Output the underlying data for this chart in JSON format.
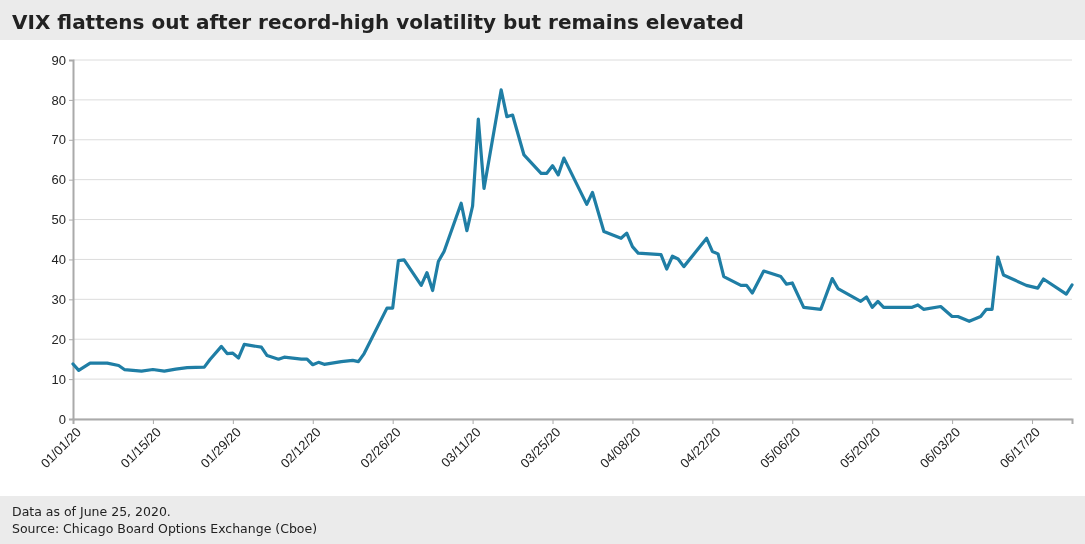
{
  "chart_data": {
    "type": "line",
    "title": "VIX flattens out after record-high volatility but remains elevated",
    "annotations": [
      "Data as of June 25, 2020.",
      "Source: Chicago Board Options Exchange (Cboe)"
    ],
    "series": [
      {
        "color": "#1f7ea5",
        "x": [
          "2020-01-01",
          "2020-01-02",
          "2020-01-04",
          "2020-01-07",
          "2020-01-09",
          "2020-01-10",
          "2020-01-13",
          "2020-01-15",
          "2020-01-17",
          "2020-01-19",
          "2020-01-21",
          "2020-01-24",
          "2020-01-25",
          "2020-01-27",
          "2020-01-28",
          "2020-01-29",
          "2020-01-30",
          "2020-01-31",
          "2020-02-03",
          "2020-02-04",
          "2020-02-06",
          "2020-02-07",
          "2020-02-10",
          "2020-02-11",
          "2020-02-12",
          "2020-02-13",
          "2020-02-14",
          "2020-02-17",
          "2020-02-19",
          "2020-02-20",
          "2020-02-21",
          "2020-02-25",
          "2020-02-26",
          "2020-02-27",
          "2020-02-28",
          "2020-03-02",
          "2020-03-03",
          "2020-03-04",
          "2020-03-05",
          "2020-03-06",
          "2020-03-09",
          "2020-03-10",
          "2020-03-11",
          "2020-03-12",
          "2020-03-13",
          "2020-03-16",
          "2020-03-17",
          "2020-03-18",
          "2020-03-20",
          "2020-03-23",
          "2020-03-24",
          "2020-03-25",
          "2020-03-26",
          "2020-03-27",
          "2020-03-31",
          "2020-04-01",
          "2020-04-03",
          "2020-04-06",
          "2020-04-07",
          "2020-04-08",
          "2020-04-09",
          "2020-04-13",
          "2020-04-14",
          "2020-04-15",
          "2020-04-16",
          "2020-04-17",
          "2020-04-21",
          "2020-04-22",
          "2020-04-23",
          "2020-04-24",
          "2020-04-27",
          "2020-04-28",
          "2020-04-29",
          "2020-05-01",
          "2020-05-04",
          "2020-05-05",
          "2020-05-06",
          "2020-05-08",
          "2020-05-11",
          "2020-05-13",
          "2020-05-14",
          "2020-05-18",
          "2020-05-19",
          "2020-05-20",
          "2020-05-21",
          "2020-05-22",
          "2020-05-27",
          "2020-05-28",
          "2020-05-29",
          "2020-06-01",
          "2020-06-03",
          "2020-06-04",
          "2020-06-06",
          "2020-06-08",
          "2020-06-09",
          "2020-06-10",
          "2020-06-11",
          "2020-06-12",
          "2020-06-16",
          "2020-06-18",
          "2020-06-19",
          "2020-06-23",
          "2020-06-24"
        ],
        "values": [
          13.8,
          12.2,
          14.0,
          14.0,
          13.4,
          12.4,
          12.0,
          12.4,
          12.0,
          12.5,
          12.9,
          13.0,
          14.9,
          18.2,
          16.4,
          16.5,
          15.3,
          18.7,
          18.0,
          15.9,
          15.0,
          15.5,
          15.0,
          15.0,
          13.6,
          14.2,
          13.7,
          14.4,
          14.7,
          14.4,
          16.4,
          27.8,
          27.8,
          39.7,
          39.9,
          33.5,
          36.7,
          32.2,
          39.5,
          42.0,
          54.1,
          47.2,
          53.4,
          75.2,
          57.8,
          82.5,
          75.8,
          76.2,
          66.2,
          61.6,
          61.6,
          63.5,
          61.2,
          65.4,
          53.8,
          56.8,
          47.0,
          45.3,
          46.6,
          43.2,
          41.6,
          41.2,
          37.6,
          40.8,
          40.1,
          38.2,
          45.3,
          42.0,
          41.4,
          35.7,
          33.5,
          33.5,
          31.6,
          37.1,
          35.7,
          33.8,
          34.1,
          28.0,
          27.5,
          35.2,
          32.7,
          29.5,
          30.6,
          28.0,
          29.5,
          28.0,
          28.0,
          28.6,
          27.5,
          28.2,
          25.7,
          25.7,
          24.5,
          25.7,
          27.5,
          27.5,
          40.6,
          36.1,
          33.5,
          32.8,
          35.1,
          31.3,
          33.6
        ]
      }
    ],
    "xlim": [
      "2020-01-01",
      "2020-06-24"
    ],
    "xticks": [
      {
        "value": "2020-01-01",
        "label": "01/01/20"
      },
      {
        "value": "2020-01-15",
        "label": "01/15/20"
      },
      {
        "value": "2020-01-29",
        "label": "01/29/20"
      },
      {
        "value": "2020-02-12",
        "label": "02/12/20"
      },
      {
        "value": "2020-02-26",
        "label": "02/26/20"
      },
      {
        "value": "2020-03-11",
        "label": "03/11/20"
      },
      {
        "value": "2020-03-25",
        "label": "03/25/20"
      },
      {
        "value": "2020-04-08",
        "label": "04/08/20"
      },
      {
        "value": "2020-04-22",
        "label": "04/22/20"
      },
      {
        "value": "2020-05-06",
        "label": "05/06/20"
      },
      {
        "value": "2020-05-20",
        "label": "05/20/20"
      },
      {
        "value": "2020-06-03",
        "label": "06/03/20"
      },
      {
        "value": "2020-06-17",
        "label": "06/17/20"
      }
    ],
    "ylim": [
      0,
      90
    ],
    "yticks": [
      0,
      10,
      20,
      30,
      40,
      50,
      60,
      70,
      80,
      90
    ],
    "grid": "y",
    "marker": "none",
    "line_style": "solid"
  }
}
